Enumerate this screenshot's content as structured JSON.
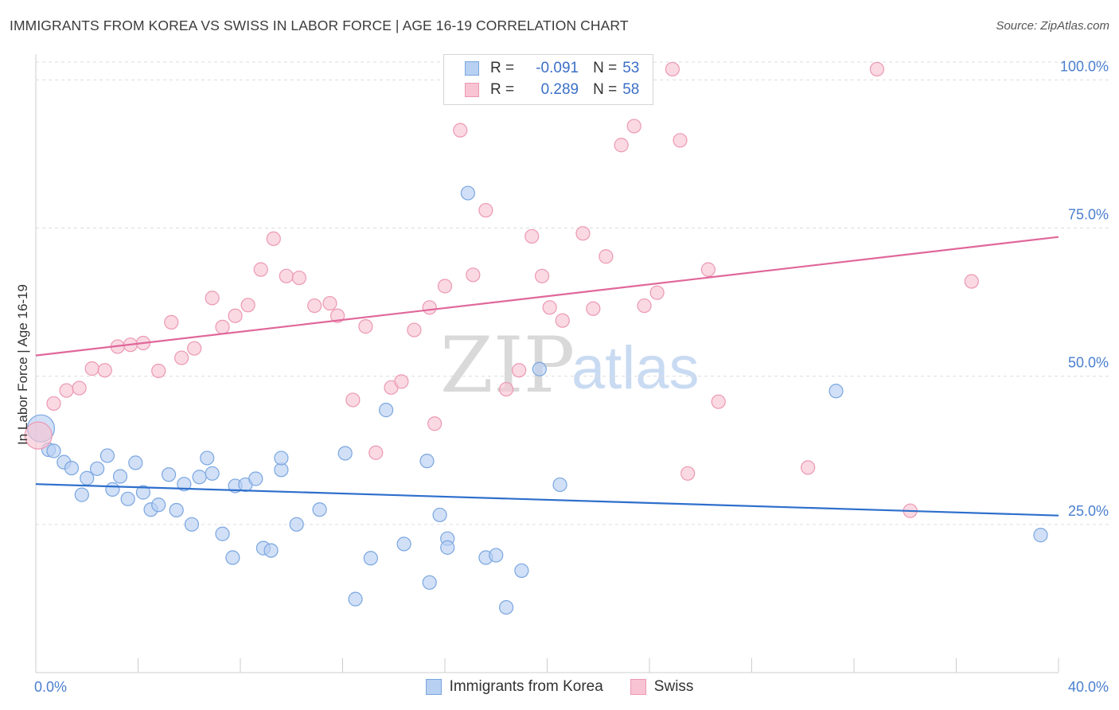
{
  "title": "IMMIGRANTS FROM KOREA VS SWISS IN LABOR FORCE | AGE 16-19 CORRELATION CHART",
  "source": "Source: ZipAtlas.com",
  "legend_top": {
    "rows": [
      {
        "r_label": "R =",
        "r_value": "-0.091",
        "n_label": "N =",
        "n_value": "53"
      },
      {
        "r_label": "R =",
        "r_value": "0.289",
        "n_label": "N =",
        "n_value": "58"
      }
    ]
  },
  "watermark": {
    "zip": "ZIP",
    "atlas": "atlas"
  },
  "colors": {
    "korea_fill": "#b8d0f2",
    "korea_stroke": "#7aa6e0",
    "korea_line": "#2e6fcc",
    "swiss_fill": "#f8c4d4",
    "swiss_stroke": "#ec98b2",
    "swiss_line": "#e0679a",
    "tick_text": "#4a7fcf",
    "grid": "#dddddd"
  },
  "chart_data": {
    "type": "scatter",
    "title": "IMMIGRANTS FROM KOREA VS SWISS IN LABOR FORCE | AGE 16-19 CORRELATION CHART",
    "xlabel": "",
    "ylabel": "In Labor Force | Age 16-19",
    "xlim": [
      0,
      40
    ],
    "ylim": [
      0,
      103
    ],
    "x_tick_labels": [
      "0.0%",
      "40.0%"
    ],
    "y_ticks": [
      25,
      50,
      75,
      100
    ],
    "y_tick_labels": [
      "25.0%",
      "50.0%",
      "75.0%",
      "100.0%"
    ],
    "grid": "horizontal dashed",
    "legend_position": "top-center",
    "series": [
      {
        "name": "Immigrants from Korea",
        "R": -0.091,
        "N": 53,
        "trend": {
          "x": [
            0,
            40
          ],
          "y": [
            31.8,
            26.5
          ]
        },
        "points": [
          [
            0.2,
            41.2,
            "big"
          ],
          [
            0.5,
            37.6
          ],
          [
            0.7,
            37.4
          ],
          [
            1.1,
            35.5
          ],
          [
            1.4,
            34.5
          ],
          [
            1.8,
            30.0
          ],
          [
            2.0,
            32.8
          ],
          [
            2.4,
            34.4
          ],
          [
            2.8,
            36.6
          ],
          [
            3.0,
            30.9
          ],
          [
            3.3,
            33.1
          ],
          [
            3.6,
            29.3
          ],
          [
            3.9,
            35.4
          ],
          [
            4.2,
            30.4
          ],
          [
            4.5,
            27.5
          ],
          [
            4.8,
            28.3
          ],
          [
            5.2,
            33.4
          ],
          [
            5.5,
            27.4
          ],
          [
            5.8,
            31.8
          ],
          [
            6.1,
            25.0
          ],
          [
            6.4,
            33.0
          ],
          [
            6.7,
            36.2
          ],
          [
            6.9,
            33.6
          ],
          [
            7.3,
            23.4
          ],
          [
            7.7,
            19.4
          ],
          [
            7.8,
            31.5
          ],
          [
            8.2,
            31.7
          ],
          [
            8.6,
            32.7
          ],
          [
            8.9,
            21.0
          ],
          [
            9.2,
            20.6
          ],
          [
            9.6,
            34.2
          ],
          [
            9.6,
            36.2
          ],
          [
            10.2,
            25.0
          ],
          [
            11.1,
            27.5
          ],
          [
            12.1,
            37.0
          ],
          [
            12.5,
            12.4
          ],
          [
            13.1,
            19.3
          ],
          [
            13.7,
            44.3
          ],
          [
            14.4,
            21.7
          ],
          [
            15.3,
            35.7
          ],
          [
            15.4,
            15.2
          ],
          [
            15.8,
            26.6
          ],
          [
            16.1,
            22.6
          ],
          [
            16.1,
            21.1
          ],
          [
            16.9,
            80.9
          ],
          [
            17.6,
            19.4
          ],
          [
            18.0,
            19.8
          ],
          [
            18.4,
            11.0
          ],
          [
            19.0,
            17.2
          ],
          [
            19.7,
            51.2
          ],
          [
            20.5,
            31.7
          ],
          [
            31.3,
            47.5
          ],
          [
            39.3,
            23.2
          ]
        ]
      },
      {
        "name": "Swiss",
        "R": 0.289,
        "N": 58,
        "trend": {
          "x": [
            0,
            40
          ],
          "y": [
            53.5,
            73.5
          ]
        },
        "points": [
          [
            0.1,
            40.0,
            "big"
          ],
          [
            0.7,
            45.4
          ],
          [
            1.2,
            47.6
          ],
          [
            1.7,
            48.0
          ],
          [
            2.2,
            51.3
          ],
          [
            2.7,
            51.0
          ],
          [
            3.2,
            55.0
          ],
          [
            3.7,
            55.3
          ],
          [
            4.2,
            55.6
          ],
          [
            4.8,
            50.9
          ],
          [
            5.3,
            59.1
          ],
          [
            5.7,
            53.1
          ],
          [
            6.2,
            54.7
          ],
          [
            6.9,
            63.2
          ],
          [
            7.3,
            58.3
          ],
          [
            7.8,
            60.2
          ],
          [
            8.3,
            62.0
          ],
          [
            8.8,
            68.0
          ],
          [
            9.3,
            73.2
          ],
          [
            9.8,
            66.9
          ],
          [
            10.3,
            66.6
          ],
          [
            10.9,
            61.9
          ],
          [
            11.5,
            62.3
          ],
          [
            11.8,
            60.2
          ],
          [
            12.4,
            46.0
          ],
          [
            12.9,
            58.4
          ],
          [
            13.3,
            37.1
          ],
          [
            13.9,
            48.1
          ],
          [
            14.3,
            49.1
          ],
          [
            14.8,
            57.8
          ],
          [
            15.4,
            61.6
          ],
          [
            15.6,
            42.0
          ],
          [
            16.0,
            65.2
          ],
          [
            16.6,
            91.5
          ],
          [
            17.1,
            67.1
          ],
          [
            17.6,
            78.0
          ],
          [
            18.4,
            47.8
          ],
          [
            18.9,
            51.0
          ],
          [
            19.4,
            73.6
          ],
          [
            19.8,
            66.9
          ],
          [
            20.1,
            61.6
          ],
          [
            20.6,
            59.4
          ],
          [
            21.4,
            74.1
          ],
          [
            21.8,
            61.4
          ],
          [
            22.3,
            70.2
          ],
          [
            22.9,
            89.0
          ],
          [
            23.4,
            92.2
          ],
          [
            23.8,
            61.9
          ],
          [
            24.3,
            64.1
          ],
          [
            24.9,
            101.8
          ],
          [
            25.2,
            89.8
          ],
          [
            25.5,
            33.6
          ],
          [
            26.3,
            68.0
          ],
          [
            26.7,
            45.7
          ],
          [
            30.2,
            34.6
          ],
          [
            32.9,
            101.8
          ],
          [
            34.2,
            27.3
          ],
          [
            36.6,
            66.0
          ]
        ]
      }
    ]
  },
  "legend_bottom": [
    "Immigrants from Korea",
    "Swiss"
  ]
}
